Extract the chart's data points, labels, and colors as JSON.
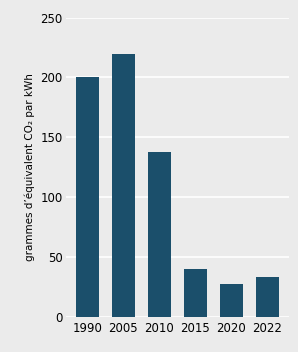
{
  "categories": [
    "1990",
    "2005",
    "2010",
    "2015",
    "2020",
    "2022"
  ],
  "values": [
    200,
    220,
    138,
    40,
    27,
    33
  ],
  "bar_color": "#1b4f6b",
  "ylabel": "grammes d’équivalent CO₂ par kWh",
  "ylim": [
    0,
    250
  ],
  "yticks": [
    0,
    50,
    100,
    150,
    200,
    250
  ],
  "background_color": "#ebebeb",
  "bar_width": 0.65,
  "ylabel_fontsize": 7.5,
  "tick_fontsize": 8.5
}
